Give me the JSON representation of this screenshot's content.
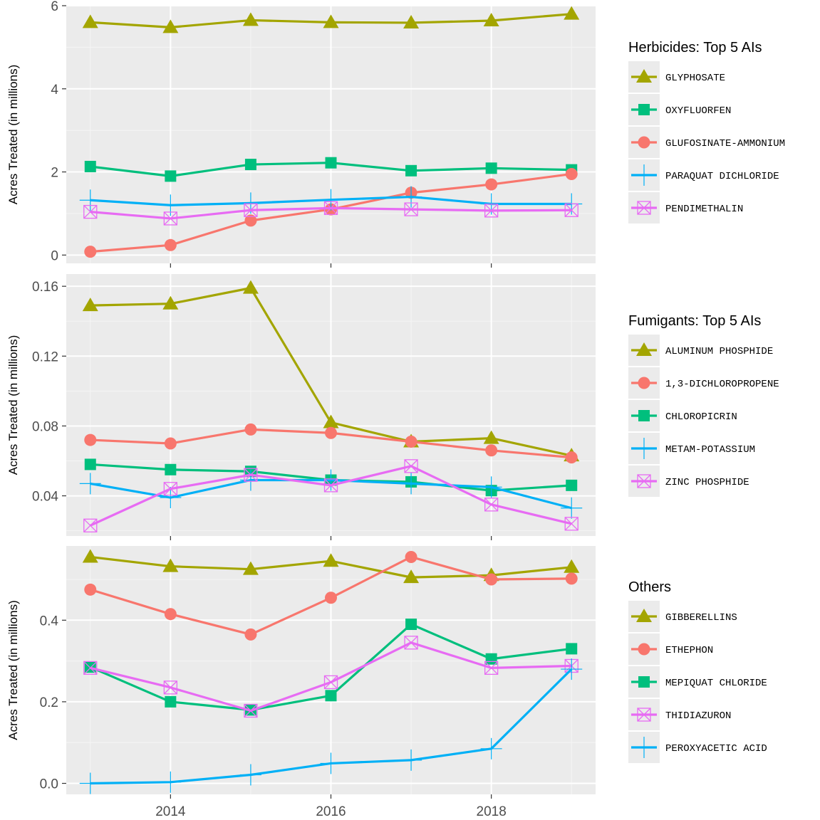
{
  "chart_data": [
    {
      "type": "line",
      "legend_title": "Herbicides: Top 5 AIs",
      "ylabel": "Acres Treated (in millions)",
      "x": [
        2013,
        2014,
        2015,
        2016,
        2017,
        2018,
        2019
      ],
      "xlim": [
        2012.7,
        2019.3
      ],
      "ylim": [
        -0.2,
        6.0
      ],
      "yticks": [
        0,
        2,
        4,
        6
      ],
      "ytick_labels": [
        "0",
        "2",
        "4",
        "6"
      ],
      "legend_position": "right",
      "grid": true,
      "series": [
        {
          "name": "GLYPHOSATE",
          "color": "#a3a500",
          "marker": "triangle",
          "values": [
            5.6,
            5.48,
            5.65,
            5.6,
            5.59,
            5.64,
            5.8
          ]
        },
        {
          "name": "OXYFLUORFEN",
          "color": "#00bf7d",
          "marker": "square",
          "values": [
            2.13,
            1.9,
            2.18,
            2.22,
            2.03,
            2.09,
            2.05
          ]
        },
        {
          "name": "GLUFOSINATE-AMMONIUM",
          "color": "#f8766d",
          "marker": "circle",
          "values": [
            0.08,
            0.24,
            0.83,
            1.1,
            1.5,
            1.7,
            1.95
          ]
        },
        {
          "name": "PARAQUAT DICHLORIDE",
          "color": "#00b0f6",
          "marker": "plus",
          "values": [
            1.32,
            1.2,
            1.25,
            1.33,
            1.4,
            1.23,
            1.23
          ]
        },
        {
          "name": "PENDIMETHALIN",
          "color": "#e76bf3",
          "marker": "boxcross",
          "values": [
            1.04,
            0.88,
            1.08,
            1.13,
            1.1,
            1.07,
            1.08
          ]
        }
      ]
    },
    {
      "type": "line",
      "legend_title": "Fumigants: Top 5 AIs",
      "ylabel": "Acres Treated (in millions)",
      "x": [
        2013,
        2014,
        2015,
        2016,
        2017,
        2018,
        2019
      ],
      "xlim": [
        2012.7,
        2019.3
      ],
      "ylim": [
        0.017,
        0.167
      ],
      "yticks": [
        0.04,
        0.08,
        0.12,
        0.16
      ],
      "ytick_labels": [
        "0.04",
        "0.08",
        "0.12",
        "0.16"
      ],
      "legend_position": "right",
      "grid": true,
      "series": [
        {
          "name": "ALUMINUM PHOSPHIDE",
          "color": "#a3a500",
          "marker": "triangle",
          "values": [
            0.149,
            0.15,
            0.159,
            0.082,
            0.071,
            0.073,
            0.063
          ]
        },
        {
          "name": "1,3-DICHLOROPROPENE",
          "color": "#f8766d",
          "marker": "circle",
          "values": [
            0.072,
            0.07,
            0.078,
            0.076,
            0.071,
            0.066,
            0.062
          ]
        },
        {
          "name": "CHLOROPICRIN",
          "color": "#00bf7d",
          "marker": "square",
          "values": [
            0.058,
            0.055,
            0.054,
            0.049,
            0.048,
            0.043,
            0.046
          ]
        },
        {
          "name": "METAM-POTASSIUM",
          "color": "#00b0f6",
          "marker": "plus",
          "values": [
            0.047,
            0.039,
            0.049,
            0.049,
            0.047,
            0.045,
            0.033
          ]
        },
        {
          "name": "ZINC PHOSPHIDE",
          "color": "#e76bf3",
          "marker": "boxcross",
          "values": [
            0.023,
            0.044,
            0.052,
            0.046,
            0.057,
            0.035,
            0.024
          ]
        }
      ]
    },
    {
      "type": "line",
      "legend_title": "Others",
      "ylabel": "Acres Treated (in millions)",
      "x": [
        2013,
        2014,
        2015,
        2016,
        2017,
        2018,
        2019
      ],
      "xlim": [
        2012.7,
        2019.3
      ],
      "ylim": [
        -0.027,
        0.582
      ],
      "yticks": [
        0.0,
        0.2,
        0.4
      ],
      "ytick_labels": [
        "0.0",
        "0.2",
        "0.4"
      ],
      "xticks": [
        2014,
        2016,
        2018
      ],
      "xtick_labels": [
        "2014",
        "2016",
        "2018"
      ],
      "legend_position": "right",
      "grid": true,
      "series": [
        {
          "name": "GIBBERELLINS",
          "color": "#a3a500",
          "marker": "triangle",
          "values": [
            0.555,
            0.532,
            0.525,
            0.545,
            0.505,
            0.51,
            0.53
          ]
        },
        {
          "name": "ETHEPHON",
          "color": "#f8766d",
          "marker": "circle",
          "values": [
            0.475,
            0.415,
            0.365,
            0.455,
            0.555,
            0.5,
            0.502
          ]
        },
        {
          "name": "MEPIQUAT CHLORIDE",
          "color": "#00bf7d",
          "marker": "square",
          "values": [
            0.285,
            0.2,
            0.18,
            0.215,
            0.39,
            0.305,
            0.33
          ]
        },
        {
          "name": "THIDIAZURON",
          "color": "#e76bf3",
          "marker": "boxcross",
          "values": [
            0.283,
            0.235,
            0.178,
            0.248,
            0.345,
            0.283,
            0.288
          ]
        },
        {
          "name": "PEROXYACETIC ACID",
          "color": "#00b0f6",
          "marker": "plus",
          "values": [
            0.0,
            0.003,
            0.021,
            0.049,
            0.057,
            0.085,
            0.28
          ]
        }
      ]
    }
  ]
}
